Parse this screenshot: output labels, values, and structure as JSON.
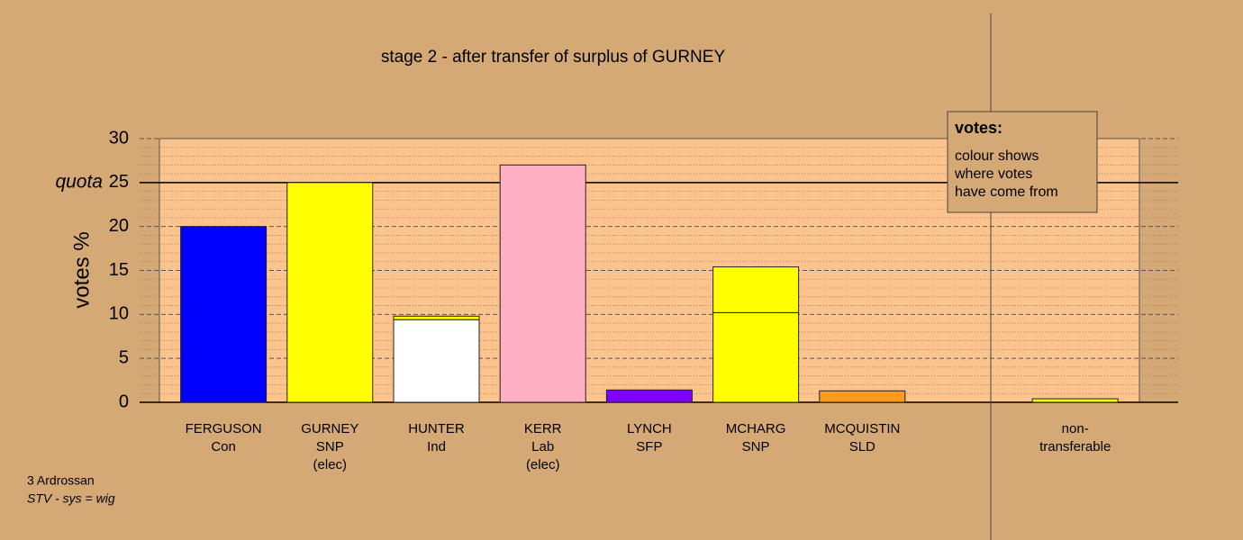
{
  "chart_data": {
    "type": "stacked_bar",
    "title": "stage 2 - after transfer of surplus of GURNEY",
    "y_label": "votes %",
    "categories": [
      [
        "FERGUSON",
        "Con"
      ],
      [
        "GURNEY",
        "SNP",
        "(elec)"
      ],
      [
        "HUNTER",
        "Ind"
      ],
      [
        "KERR",
        "Lab",
        "(elec)"
      ],
      [
        "LYNCH",
        "SFP"
      ],
      [
        "MCHARG",
        "SNP"
      ],
      [
        "MCQUISTIN",
        "SLD"
      ],
      null,
      [
        "non-",
        "transferable"
      ]
    ],
    "series": [
      {
        "color": "#0000ff",
        "values": [
          20,
          null,
          null,
          null,
          null,
          null,
          null,
          null,
          null
        ]
      },
      {
        "color": "#ffff00",
        "values": [
          null,
          25,
          null,
          null,
          null,
          10.2,
          null,
          null,
          null
        ]
      },
      {
        "color": "#ffffff",
        "values": [
          null,
          null,
          9.4,
          null,
          null,
          null,
          null,
          null,
          null
        ]
      },
      {
        "color": "#ffb0c4",
        "values": [
          null,
          null,
          null,
          27,
          null,
          null,
          null,
          null,
          null
        ]
      },
      {
        "color": "#8000ff",
        "values": [
          null,
          null,
          null,
          null,
          1.4,
          null,
          null,
          null,
          null
        ]
      },
      {
        "color": "#ff9a1a",
        "values": [
          null,
          null,
          null,
          null,
          null,
          null,
          1.3,
          null,
          null
        ]
      },
      {
        "color": "#ffff00",
        "values": [
          null,
          null,
          0.4,
          null,
          null,
          5.2,
          null,
          null,
          0.4
        ]
      }
    ],
    "ylim": [
      0,
      30
    ],
    "yticks": [
      0,
      5,
      10,
      15,
      20,
      25,
      30
    ],
    "yminor": 1,
    "grid": true,
    "quota": 25,
    "quota_label": "quota",
    "note": {
      "title": "votes:",
      "lines": [
        "colour shows",
        "where votes",
        "have come from"
      ]
    },
    "footnote": [
      "3 Ardrossan",
      "STV - sys = wig"
    ]
  }
}
